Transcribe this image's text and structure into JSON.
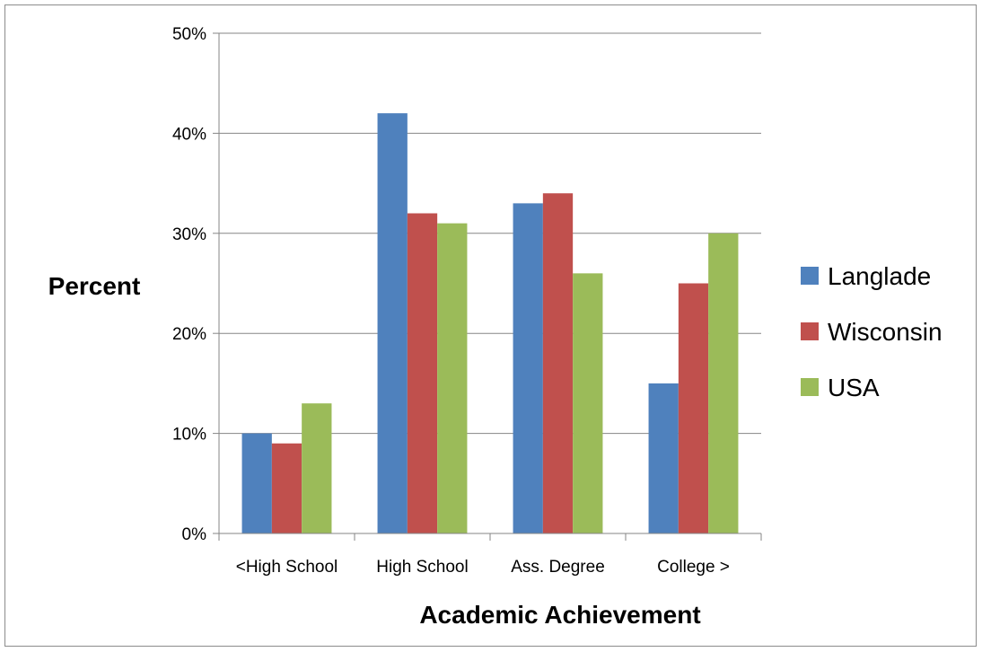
{
  "chart_data": {
    "type": "bar",
    "title": "",
    "xlabel": "Academic Achievement",
    "ylabel": "Percent",
    "categories": [
      "<High School",
      "High School",
      "Ass. Degree",
      "College >"
    ],
    "series": [
      {
        "name": "Langlade",
        "values": [
          10,
          42,
          33,
          15
        ],
        "color": "#4f81bd"
      },
      {
        "name": "Wisconsin",
        "values": [
          9,
          32,
          34,
          25
        ],
        "color": "#c0504d"
      },
      {
        "name": "USA",
        "values": [
          13,
          31,
          26,
          30
        ],
        "color": "#9bbb59"
      }
    ],
    "ylim": [
      0,
      50
    ],
    "yticks": [
      0,
      10,
      20,
      30,
      40,
      50
    ],
    "ytick_labels": [
      "0%",
      "10%",
      "20%",
      "30%",
      "40%",
      "50%"
    ],
    "grid": true,
    "legend_position": "right"
  }
}
